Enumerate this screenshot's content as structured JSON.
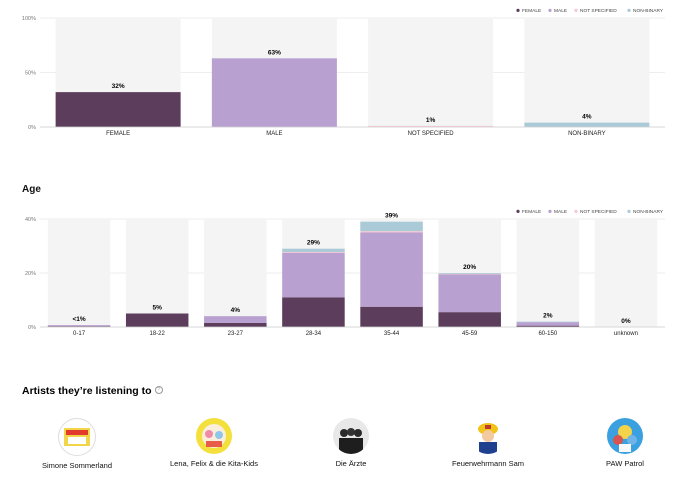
{
  "gender_section": {
    "legend": [
      {
        "label": "FEMALE",
        "color": "#5c3d5c"
      },
      {
        "label": "MALE",
        "color": "#b8a0d0"
      },
      {
        "label": "NOT SPECIFIED",
        "color": "#f7c6d0"
      },
      {
        "label": "NON-BINARY",
        "color": "#a9cad6"
      }
    ]
  },
  "age_section": {
    "title": "Age",
    "legend": [
      {
        "label": "FEMALE",
        "color": "#5c3d5c"
      },
      {
        "label": "MALE",
        "color": "#b8a0d0"
      },
      {
        "label": "NOT SPECIFIED",
        "color": "#f7c6d0"
      },
      {
        "label": "NON-BINARY",
        "color": "#a9cad6"
      }
    ]
  },
  "chart_data": [
    {
      "type": "bar",
      "categories": [
        "FEMALE",
        "MALE",
        "NOT SPECIFIED",
        "NON-BINARY"
      ],
      "values": [
        32,
        63,
        1,
        4
      ],
      "value_labels": [
        "32%",
        "63%",
        "1%",
        "4%"
      ],
      "colors": [
        "#5c3d5c",
        "#b8a0d0",
        "#f7c6d0",
        "#a9cad6"
      ],
      "yticks": [
        "0%",
        "50%",
        "100%"
      ],
      "ylim": [
        0,
        100
      ],
      "grid": true,
      "legend": "top-right"
    },
    {
      "type": "bar",
      "stacked": true,
      "categories": [
        "0-17",
        "18-22",
        "23-27",
        "28-34",
        "35-44",
        "45-59",
        "60-150",
        "unknown"
      ],
      "series": [
        {
          "name": "FEMALE",
          "values": [
            0.3,
            5,
            1.5,
            11,
            7.5,
            5.5,
            0.5,
            0
          ]
        },
        {
          "name": "MALE",
          "values": [
            0.4,
            0,
            2.5,
            16.5,
            27.5,
            14,
            1.3,
            0
          ]
        },
        {
          "name": "NOT SPECIFIED",
          "values": [
            0,
            0,
            0,
            0.3,
            0.5,
            0.2,
            0,
            0
          ]
        },
        {
          "name": "NON-BINARY",
          "values": [
            0,
            0,
            0,
            1.2,
            3.5,
            0.3,
            0.2,
            0
          ]
        }
      ],
      "totals_labels": [
        "<1%",
        "5%",
        "4%",
        "29%",
        "39%",
        "20%",
        "2%",
        "0%"
      ],
      "yticks": [
        "0%",
        "20%",
        "40%"
      ],
      "ylim": [
        0,
        40
      ],
      "grid": true,
      "legend": "top-right"
    }
  ],
  "artists_section": {
    "title": "Artists they’re listening to",
    "info_icon": "?",
    "items": [
      {
        "name": "Simone Sommerland",
        "icon": "album-cover-icon"
      },
      {
        "name": "Lena, Felix & die Kita-Kids",
        "icon": "cartoon-cover-icon"
      },
      {
        "name": "Die Ärzte",
        "icon": "band-photo-icon"
      },
      {
        "name": "Feuerwehrmann Sam",
        "icon": "firefighter-icon"
      },
      {
        "name": "PAW Patrol",
        "icon": "pup-icon"
      }
    ]
  }
}
